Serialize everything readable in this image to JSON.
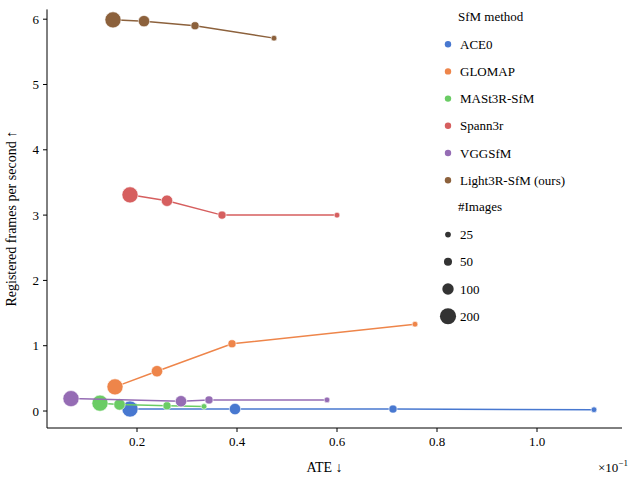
{
  "chart_data": {
    "type": "line",
    "x_label": "ATE ↓",
    "y_label": "Registered frames per second ↑",
    "x_offset_text": {
      "base": "×10",
      "exponent": "−1"
    },
    "xlim": [
      0.02,
      1.17
    ],
    "ylim": [
      -0.26,
      6.15
    ],
    "xticks": [
      0.2,
      0.4,
      0.6,
      0.8,
      {
        "value": 1,
        "label": "1.0"
      }
    ],
    "yticks": [
      0,
      1,
      2,
      3,
      4,
      5,
      6
    ],
    "grid": false,
    "legend": "upper right",
    "legend_title": "SfM method",
    "marker": "circle",
    "size_legend": {
      "title": "#Images",
      "values": [
        25,
        50,
        100,
        200
      ]
    },
    "series": [
      {
        "name": "ACE0",
        "color": "#4878d0",
        "x": [
          0.186,
          0.396,
          0.712,
          1.114
        ],
        "values": [
          0.03,
          0.03,
          0.03,
          0.02
        ],
        "sizes": [
          200,
          100,
          50,
          25
        ]
      },
      {
        "name": "GLOMAP",
        "color": "#ee854a",
        "x": [
          0.156,
          0.24,
          0.39,
          0.756
        ],
        "values": [
          0.37,
          0.61,
          1.03,
          1.33
        ],
        "sizes": [
          200,
          100,
          50,
          25
        ]
      },
      {
        "name": "MASt3R-SfM",
        "color": "#6acc64",
        "x": [
          0.126,
          0.165,
          0.26,
          0.334
        ],
        "values": [
          0.12,
          0.1,
          0.08,
          0.07
        ],
        "sizes": [
          200,
          100,
          50,
          25
        ]
      },
      {
        "name": "Spann3r",
        "color": "#d65f5f",
        "x": [
          0.186,
          0.26,
          0.37,
          0.6
        ],
        "values": [
          3.31,
          3.22,
          3.0,
          3.0
        ],
        "sizes": [
          200,
          100,
          50,
          25
        ]
      },
      {
        "name": "VGGSfM",
        "color": "#956cb4",
        "x": [
          0.068,
          0.288,
          0.344,
          0.58
        ],
        "values": [
          0.19,
          0.15,
          0.17,
          0.17
        ],
        "sizes": [
          200,
          100,
          50,
          25
        ]
      },
      {
        "name": "Light3R-SfM (ours)",
        "color": "#8c613c",
        "x": [
          0.152,
          0.214,
          0.316,
          0.474
        ],
        "values": [
          5.99,
          5.97,
          5.9,
          5.71
        ],
        "sizes": [
          200,
          100,
          50,
          25
        ]
      }
    ]
  }
}
